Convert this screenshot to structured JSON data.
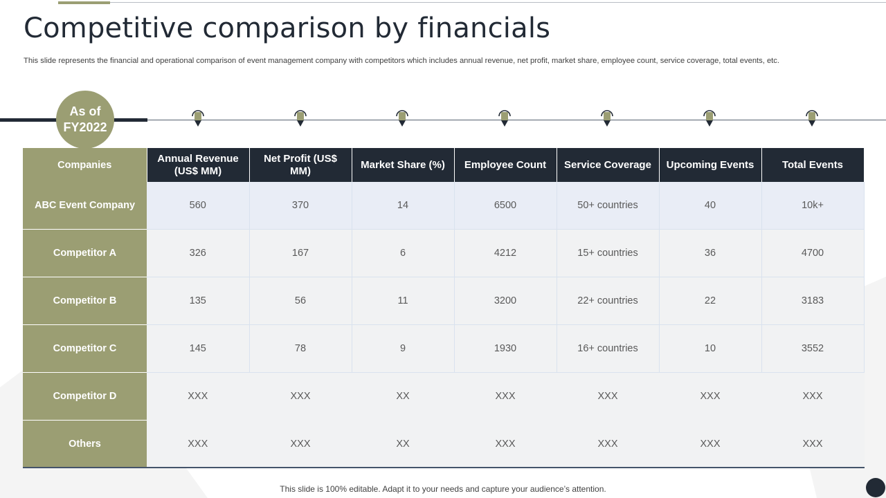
{
  "slide": {
    "title": "Competitive comparison by financials",
    "subtitle": "This slide represents the financial and operational comparison of event management company with competitors which includes annual revenue, net profit, market share, employee count, service coverage, total events, etc.",
    "badge": {
      "line1": "As of",
      "line2": "FY2022"
    },
    "footer": "This slide is 100% editable. Adapt it to your needs and capture your audience’s attention."
  },
  "colors": {
    "accent_olive": "#9b9e73",
    "navy": "#222a35",
    "highlight_row": "#e9edf6",
    "cell_gray": "#f1f2f3"
  },
  "icons": [
    "map-pin-icon"
  ],
  "table": {
    "headers": [
      "Companies",
      "Annual Revenue (US$ MM)",
      "Net Profit (US$ MM)",
      "Market Share (%)",
      "Employee Count",
      "Service Coverage",
      "Upcoming Events",
      "Total Events"
    ],
    "rows": [
      {
        "company": "ABC Event Company",
        "values": [
          "560",
          "370",
          "14",
          "6500",
          "50+ countries",
          "40",
          "10k+"
        ]
      },
      {
        "company": "Competitor A",
        "values": [
          "326",
          "167",
          "6",
          "4212",
          "15+ countries",
          "36",
          "4700"
        ]
      },
      {
        "company": "Competitor B",
        "values": [
          "135",
          "56",
          "11",
          "3200",
          "22+ countries",
          "22",
          "3183"
        ]
      },
      {
        "company": "Competitor C",
        "values": [
          "145",
          "78",
          "9",
          "1930",
          "16+ countries",
          "10",
          "3552"
        ]
      },
      {
        "company": "Competitor D",
        "values": [
          "XXX",
          "XXX",
          "XX",
          "XXX",
          "XXX",
          "XXX",
          "XXX"
        ]
      },
      {
        "company": "Others",
        "values": [
          "XXX",
          "XXX",
          "XX",
          "XXX",
          "XXX",
          "XXX",
          "XXX"
        ]
      }
    ]
  }
}
